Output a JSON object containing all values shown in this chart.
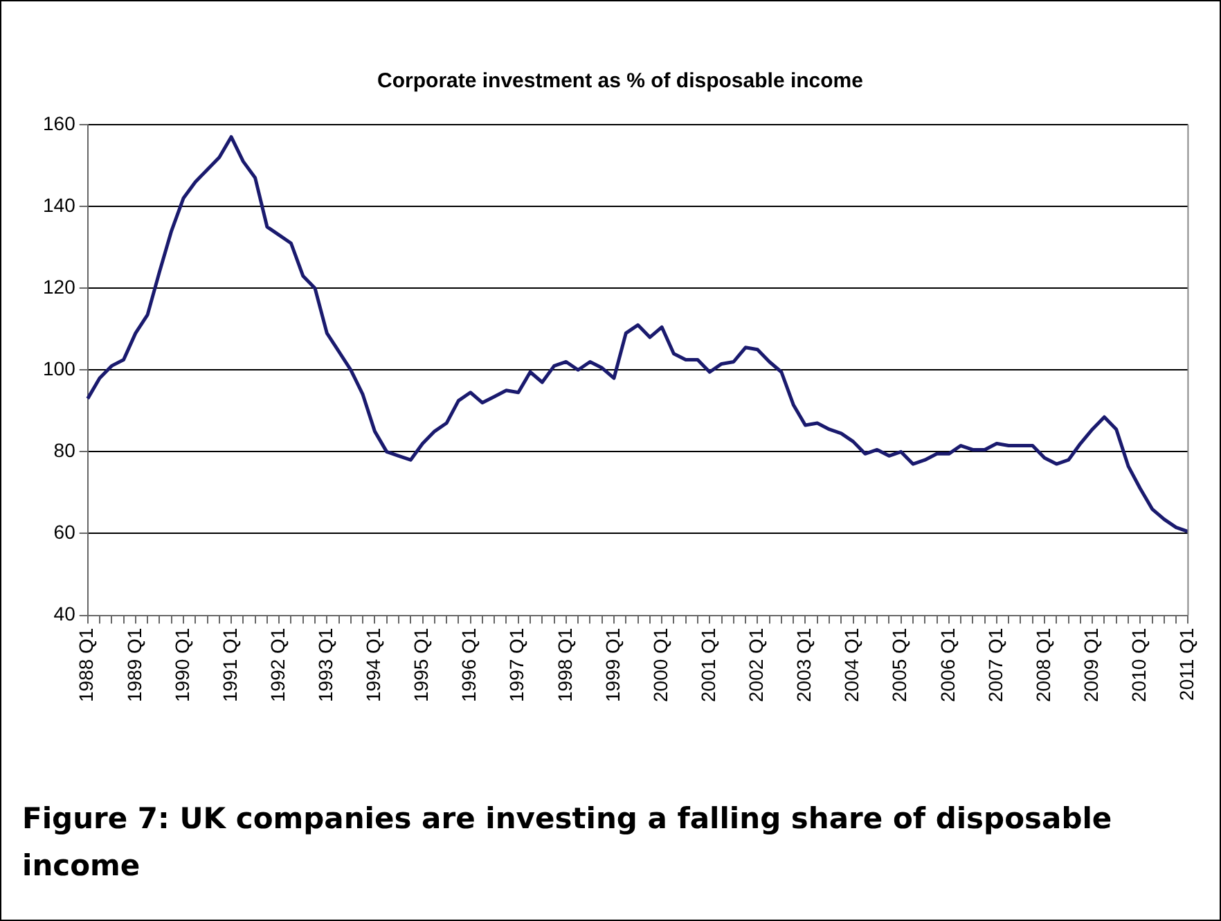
{
  "chart_data": {
    "type": "line",
    "title": "Corporate investment as % of disposable income",
    "categories": [
      "1988 Q1",
      null,
      null,
      null,
      "1989 Q1",
      null,
      null,
      null,
      "1990 Q1",
      null,
      null,
      null,
      "1991 Q1",
      null,
      null,
      null,
      "1992 Q1",
      null,
      null,
      null,
      "1993 Q1",
      null,
      null,
      null,
      "1994 Q1",
      null,
      null,
      null,
      "1995 Q1",
      null,
      null,
      null,
      "1996 Q1",
      null,
      null,
      null,
      "1997 Q1",
      null,
      null,
      null,
      "1998 Q1",
      null,
      null,
      null,
      "1999 Q1",
      null,
      null,
      null,
      "2000 Q1",
      null,
      null,
      null,
      "2001 Q1",
      null,
      null,
      null,
      "2002 Q1",
      null,
      null,
      null,
      "2003 Q1",
      null,
      null,
      null,
      "2004 Q1",
      null,
      null,
      null,
      "2005 Q1",
      null,
      null,
      null,
      "2006 Q1",
      null,
      null,
      null,
      "2007 Q1",
      null,
      null,
      null,
      "2008 Q1",
      null,
      null,
      null,
      "2009 Q1",
      null,
      null,
      null,
      "2010 Q1",
      null,
      null,
      null,
      "2011 Q1"
    ],
    "series": [
      {
        "color": "#1a1a6e",
        "values": [
          93,
          98,
          101,
          102.5,
          109,
          113.5,
          124,
          134,
          142,
          146,
          149,
          152,
          157,
          151,
          147,
          135,
          133,
          131,
          123,
          120,
          109,
          104.5,
          100,
          94,
          85,
          80,
          79,
          78,
          82,
          85,
          87,
          92.5,
          94.5,
          92,
          93.5,
          95,
          94.5,
          99.5,
          97,
          101,
          102,
          100,
          102,
          100.5,
          98,
          109,
          111,
          108,
          110.5,
          104,
          102.5,
          102.5,
          99.5,
          101.5,
          102,
          105.5,
          105,
          102,
          99.5,
          91.5,
          86.5,
          87,
          85.5,
          84.5,
          82.5,
          79.5,
          80.5,
          79,
          80,
          77,
          78,
          79.5,
          79.5,
          81.5,
          80.5,
          80.5,
          82,
          81.5,
          81.5,
          81.5,
          78.5,
          77,
          78,
          82,
          85.5,
          88.5,
          85.5,
          76.5,
          71,
          66,
          63.5,
          61.5,
          60.5
        ]
      }
    ],
    "ylim": [
      40,
      160
    ],
    "yticks": [
      40,
      60,
      80,
      100,
      120,
      140,
      160
    ],
    "grid": "y",
    "legend": false,
    "marker": "none",
    "line_style": "solid",
    "annotations": [
      "Figure 7: UK companies are investing a falling share of disposable income"
    ]
  }
}
